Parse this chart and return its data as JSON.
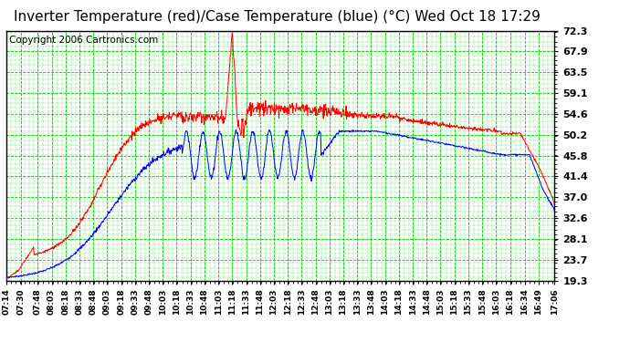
{
  "title": "Inverter Temperature (red)/Case Temperature (blue) (°C) Wed Oct 18 17:29",
  "copyright": "Copyright 2006 Cartronics.com",
  "yticks": [
    19.3,
    23.7,
    28.1,
    32.6,
    37.0,
    41.4,
    45.8,
    50.2,
    54.6,
    59.1,
    63.5,
    67.9,
    72.3
  ],
  "ylim": [
    19.3,
    72.3
  ],
  "bg_color": "#ffffff",
  "plot_bg_color": "#ffffff",
  "grid_color": "#00cc00",
  "red_color": "#ff0000",
  "blue_color": "#0000ff",
  "title_fontsize": 11,
  "copyright_fontsize": 7.5,
  "xtick_labels": [
    "07:14",
    "07:30",
    "07:48",
    "08:03",
    "08:18",
    "08:33",
    "08:48",
    "09:03",
    "09:18",
    "09:33",
    "09:48",
    "10:03",
    "10:18",
    "10:33",
    "10:48",
    "11:03",
    "11:18",
    "11:33",
    "11:48",
    "12:03",
    "12:18",
    "12:33",
    "12:48",
    "13:03",
    "13:18",
    "13:33",
    "13:48",
    "14:03",
    "14:18",
    "14:33",
    "14:48",
    "15:03",
    "15:18",
    "15:33",
    "15:48",
    "16:03",
    "16:18",
    "16:34",
    "16:49",
    "17:06"
  ]
}
